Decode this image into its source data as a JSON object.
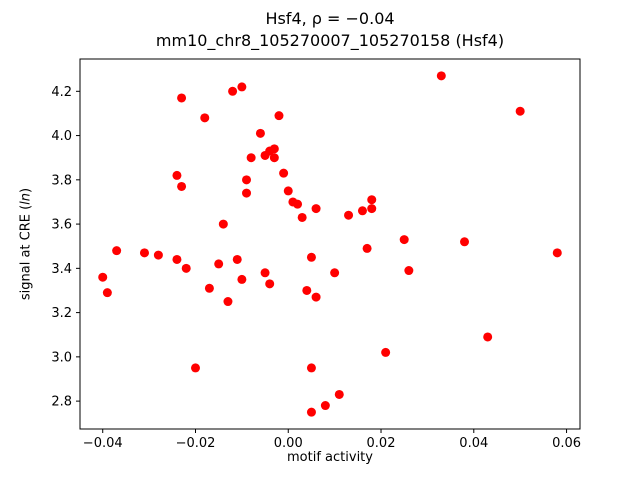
{
  "chart_data": {
    "type": "scatter",
    "title": "Hsf4, ρ = −0.04",
    "subtitle": "mm10_chr8_105270007_105270158 (Hsf4)",
    "xlabel": "motif activity",
    "ylabel_prefix": "signal at CRE (",
    "ylabel_math": "ln",
    "ylabel_suffix": ")",
    "marker_color": "#ff0000",
    "axis_color": "#000000",
    "background_color": "#ffffff",
    "legend": "none",
    "grid": false,
    "xlim": [
      -0.0449,
      0.0629
    ],
    "ylim": [
      2.674,
      4.346
    ],
    "xticks": [
      -0.04,
      -0.02,
      0.0,
      0.02,
      0.04,
      0.06
    ],
    "xtick_labels": [
      "−0.04",
      "−0.02",
      "0.00",
      "0.02",
      "0.04",
      "0.06"
    ],
    "yticks": [
      2.8,
      3.0,
      3.2,
      3.4,
      3.6,
      3.8,
      4.0,
      4.2
    ],
    "ytick_labels": [
      "2.8",
      "3.0",
      "3.2",
      "3.4",
      "3.6",
      "3.8",
      "4.0",
      "4.2"
    ],
    "points": [
      [
        -0.04,
        3.36
      ],
      [
        -0.039,
        3.29
      ],
      [
        -0.037,
        3.48
      ],
      [
        -0.031,
        3.47
      ],
      [
        -0.028,
        3.46
      ],
      [
        -0.024,
        3.82
      ],
      [
        -0.024,
        3.44
      ],
      [
        -0.023,
        4.17
      ],
      [
        -0.023,
        3.77
      ],
      [
        -0.022,
        3.4
      ],
      [
        -0.02,
        2.95
      ],
      [
        -0.018,
        4.08
      ],
      [
        -0.017,
        3.31
      ],
      [
        -0.015,
        3.42
      ],
      [
        -0.014,
        3.6
      ],
      [
        -0.013,
        3.25
      ],
      [
        -0.012,
        4.2
      ],
      [
        -0.011,
        3.44
      ],
      [
        -0.01,
        4.22
      ],
      [
        -0.01,
        3.35
      ],
      [
        -0.009,
        3.8
      ],
      [
        -0.009,
        3.74
      ],
      [
        -0.008,
        3.9
      ],
      [
        -0.006,
        4.01
      ],
      [
        -0.005,
        3.91
      ],
      [
        -0.005,
        3.38
      ],
      [
        -0.004,
        3.93
      ],
      [
        -0.004,
        3.33
      ],
      [
        -0.003,
        3.94
      ],
      [
        -0.003,
        3.9
      ],
      [
        -0.002,
        4.09
      ],
      [
        -0.001,
        3.83
      ],
      [
        0.0,
        3.75
      ],
      [
        0.001,
        3.7
      ],
      [
        0.002,
        3.69
      ],
      [
        0.003,
        3.63
      ],
      [
        0.004,
        3.3
      ],
      [
        0.005,
        3.45
      ],
      [
        0.005,
        2.95
      ],
      [
        0.005,
        2.75
      ],
      [
        0.006,
        3.67
      ],
      [
        0.006,
        3.27
      ],
      [
        0.008,
        2.78
      ],
      [
        0.01,
        3.38
      ],
      [
        0.011,
        2.83
      ],
      [
        0.013,
        3.64
      ],
      [
        0.016,
        3.66
      ],
      [
        0.017,
        3.49
      ],
      [
        0.018,
        3.71
      ],
      [
        0.018,
        3.67
      ],
      [
        0.021,
        3.02
      ],
      [
        0.025,
        3.53
      ],
      [
        0.026,
        3.39
      ],
      [
        0.033,
        4.27
      ],
      [
        0.038,
        3.52
      ],
      [
        0.043,
        3.09
      ],
      [
        0.05,
        4.11
      ],
      [
        0.058,
        3.47
      ]
    ]
  }
}
